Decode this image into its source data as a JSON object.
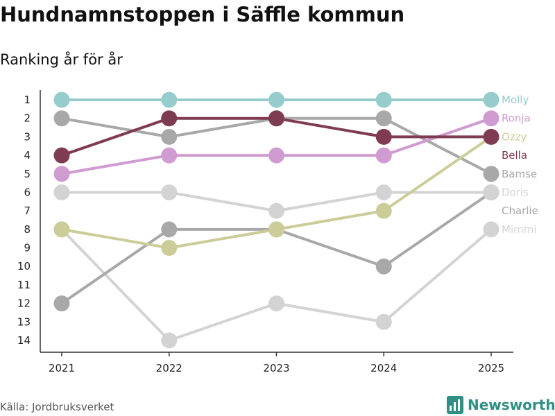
{
  "chart_data": {
    "type": "line",
    "title": "Hundnamnstoppen i Säffle kommun",
    "subtitle": "Ranking år för år",
    "source": "Källa: Jordbruksverket",
    "brand": "Newsworthy",
    "x": [
      "2021",
      "2022",
      "2023",
      "2024",
      "2025"
    ],
    "y_ticks": [
      "1",
      "2",
      "3",
      "4",
      "5",
      "6",
      "7",
      "8",
      "9",
      "10",
      "11",
      "12",
      "13",
      "14"
    ],
    "ylim": [
      1,
      14
    ],
    "y_reversed": true,
    "series": [
      {
        "name": "Mimmi",
        "color": "#d3d3d3",
        "values": [
          8,
          14,
          12,
          13,
          8
        ],
        "label_rank": 8
      },
      {
        "name": "Charlie",
        "color": "#a8a8a8",
        "values": [
          12,
          8,
          8,
          10,
          6
        ],
        "label_rank": 7
      },
      {
        "name": "Doris",
        "color": "#d3d3d3",
        "values": [
          6,
          6,
          7,
          6,
          6
        ],
        "label_rank": 6
      },
      {
        "name": "Bamse",
        "color": "#a8a8a8",
        "values": [
          2,
          3,
          2,
          2,
          5
        ],
        "label_rank": 5
      },
      {
        "name": "Ozzy",
        "color": "#cccc99",
        "values": [
          8,
          9,
          8,
          7,
          3
        ],
        "label_rank": 3
      },
      {
        "name": "Ronja",
        "color": "#cf9bd1",
        "values": [
          5,
          4,
          4,
          4,
          2
        ],
        "label_rank": 2
      },
      {
        "name": "Bella",
        "color": "#7f3b52",
        "values": [
          4,
          2,
          2,
          3,
          3
        ],
        "label_rank": 4
      },
      {
        "name": "Molly",
        "color": "#96cccc",
        "values": [
          1,
          1,
          1,
          1,
          1
        ],
        "label_rank": 1
      }
    ]
  },
  "colors": {
    "brand": "#2f8f83",
    "axis": "#333333"
  },
  "icons": {
    "brand_logo": "bar-chart-icon"
  }
}
